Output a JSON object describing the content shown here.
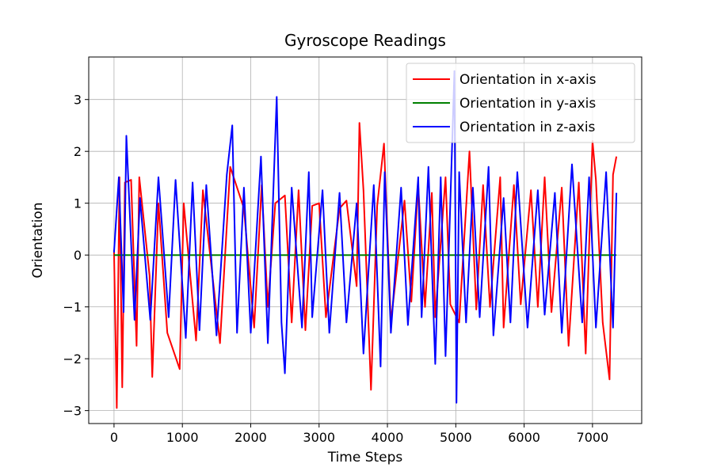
{
  "chart_data": {
    "type": "line",
    "title": "Gyroscope Readings",
    "xlabel": "Time Steps",
    "ylabel": "Orientation",
    "xlim": [
      -370,
      7720
    ],
    "ylim": [
      -3.25,
      3.82
    ],
    "xticks": [
      0,
      1000,
      2000,
      3000,
      4000,
      5000,
      6000,
      7000
    ],
    "xtick_labels": [
      "0",
      "1000",
      "2000",
      "3000",
      "4000",
      "5000",
      "6000",
      "7000"
    ],
    "yticks": [
      -3,
      -2,
      -1,
      0,
      1,
      2,
      3
    ],
    "ytick_labels": [
      "−3",
      "−2",
      "−1",
      "0",
      "1",
      "2",
      "3"
    ],
    "grid": true,
    "legend_position": "upper right",
    "series": [
      {
        "name": "Orientation in x-axis",
        "color": "#ff0000",
        "x": [
          0,
          40,
          80,
          120,
          160,
          250,
          330,
          370,
          520,
          560,
          650,
          780,
          960,
          1020,
          1200,
          1300,
          1550,
          1700,
          1900,
          2050,
          2160,
          2250,
          2360,
          2500,
          2600,
          2700,
          2800,
          2900,
          3000,
          3100,
          3300,
          3400,
          3550,
          3590,
          3650,
          3760,
          3850,
          3950,
          4050,
          4250,
          4350,
          4450,
          4550,
          4650,
          4700,
          4850,
          4920,
          5050,
          5200,
          5300,
          5400,
          5500,
          5650,
          5700,
          5850,
          5950,
          6100,
          6200,
          6300,
          6400,
          6550,
          6650,
          6800,
          6900,
          7000,
          7050,
          7150,
          7250,
          7300,
          7350
        ],
        "y": [
          0.1,
          -2.95,
          1.5,
          -2.55,
          1.4,
          1.45,
          -1.75,
          1.5,
          -0.4,
          -2.35,
          1.0,
          -1.5,
          -2.2,
          1.0,
          -1.65,
          1.25,
          -1.7,
          1.7,
          0.9,
          -1.4,
          1.35,
          -1.0,
          1.0,
          1.15,
          -1.3,
          1.25,
          -1.45,
          0.95,
          1.0,
          -1.2,
          0.9,
          1.05,
          -0.6,
          2.55,
          1.25,
          -2.6,
          0.95,
          2.15,
          -1.3,
          1.05,
          -0.9,
          1.35,
          -1.0,
          1.2,
          -1.2,
          1.5,
          -0.95,
          -1.3,
          2.0,
          -1.05,
          1.35,
          -1.0,
          1.5,
          -1.4,
          1.35,
          -0.95,
          1.25,
          -1.0,
          1.5,
          -1.1,
          1.3,
          -1.75,
          1.4,
          -1.9,
          2.2,
          1.45,
          -1.3,
          -2.4,
          1.55,
          1.9
        ]
      },
      {
        "name": "Orientation in y-axis",
        "color": "#008000",
        "x": [
          0,
          7350
        ],
        "y": [
          0,
          0
        ]
      },
      {
        "name": "Orientation in z-axis",
        "color": "#0000ff",
        "x": [
          0,
          70,
          140,
          180,
          300,
          380,
          530,
          650,
          800,
          900,
          1050,
          1150,
          1250,
          1350,
          1500,
          1650,
          1730,
          1800,
          1900,
          2000,
          2150,
          2250,
          2380,
          2450,
          2500,
          2600,
          2750,
          2850,
          2900,
          3050,
          3150,
          3300,
          3400,
          3550,
          3650,
          3800,
          3900,
          3960,
          4050,
          4200,
          4300,
          4450,
          4500,
          4600,
          4700,
          4780,
          4850,
          4980,
          5010,
          5050,
          5150,
          5250,
          5350,
          5480,
          5550,
          5700,
          5800,
          5900,
          6050,
          6200,
          6300,
          6450,
          6550,
          6700,
          6850,
          6950,
          7050,
          7200,
          7300,
          7350
        ],
        "y": [
          0.05,
          1.5,
          -1.1,
          2.3,
          -1.25,
          1.1,
          -1.25,
          1.5,
          -1.2,
          1.45,
          -1.6,
          1.4,
          -1.45,
          1.35,
          -1.55,
          1.55,
          2.5,
          -1.5,
          1.3,
          -1.5,
          1.9,
          -1.7,
          3.05,
          -1.3,
          -2.28,
          1.3,
          -1.4,
          1.6,
          -1.2,
          1.25,
          -1.5,
          1.2,
          -1.3,
          1.0,
          -1.9,
          1.35,
          -2.15,
          1.6,
          -1.5,
          1.3,
          -1.35,
          1.5,
          -1.2,
          1.7,
          -2.1,
          1.5,
          -1.95,
          3.55,
          -2.85,
          1.6,
          -1.3,
          1.3,
          -1.2,
          1.7,
          -1.55,
          1.1,
          -1.3,
          1.6,
          -1.4,
          1.25,
          -1.15,
          1.2,
          -1.5,
          1.75,
          -1.3,
          1.5,
          -1.4,
          1.6,
          -1.4,
          1.2
        ]
      }
    ]
  }
}
